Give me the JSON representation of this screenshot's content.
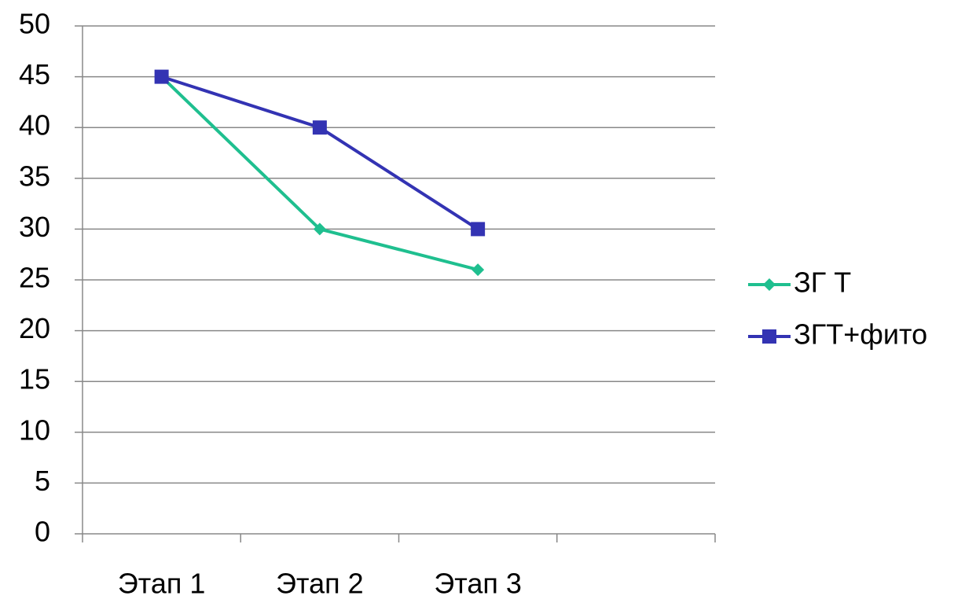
{
  "chart_data": {
    "type": "line",
    "categories": [
      "Этап 1",
      "Этап 2",
      "Этап 3",
      null
    ],
    "series": [
      {
        "name": "ЗГ Т",
        "color": "#1fbf8f",
        "marker": "diamond",
        "values": [
          45,
          30,
          26,
          null
        ]
      },
      {
        "name": "ЗГТ+фито",
        "color": "#3333b3",
        "marker": "square",
        "values": [
          45,
          40,
          30,
          null
        ]
      }
    ],
    "ylim": [
      0,
      50
    ],
    "yticks": [
      0,
      5,
      10,
      15,
      20,
      25,
      30,
      35,
      40,
      45,
      50
    ],
    "grid": true,
    "legend": "right"
  }
}
